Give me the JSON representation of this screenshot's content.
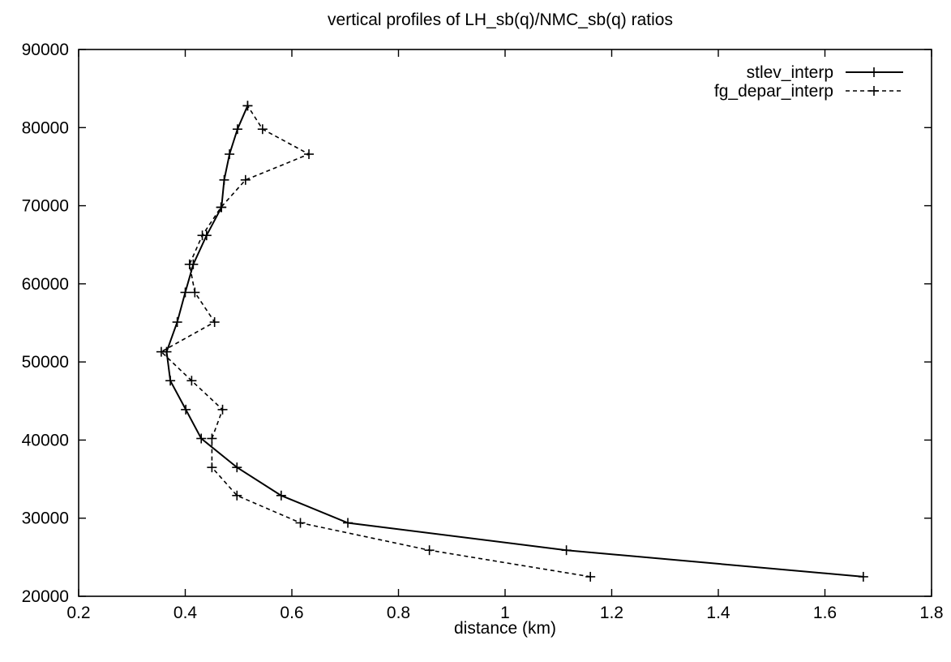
{
  "chart_data": {
    "type": "line",
    "title": "vertical profiles of LH_sb(q)/NMC_sb(q) ratios",
    "xlabel": "distance (km)",
    "ylabel": "",
    "xlim": [
      0.2,
      1.8
    ],
    "ylim": [
      20000,
      90000
    ],
    "x_ticks": [
      "0.2",
      "0.4",
      "0.6",
      "0.8",
      "1",
      "1.2",
      "1.4",
      "1.6",
      "1.8"
    ],
    "y_ticks": [
      "20000",
      "30000",
      "40000",
      "50000",
      "60000",
      "70000",
      "80000",
      "90000"
    ],
    "legend_position": "top-right",
    "grid": false,
    "series": [
      {
        "name": "stlev_interp",
        "style": "solid",
        "x": [
          1.672,
          1.115,
          0.705,
          0.58,
          0.497,
          0.43,
          0.401,
          0.372,
          0.365,
          0.385,
          0.4,
          0.415,
          0.44,
          0.468,
          0.473,
          0.483,
          0.498,
          0.517
        ],
        "y": [
          22500,
          25900,
          29400,
          32900,
          36500,
          40200,
          43900,
          47600,
          51300,
          55100,
          58900,
          62500,
          66200,
          69800,
          73300,
          76600,
          79800,
          82800
        ]
      },
      {
        "name": "fg_depar_interp",
        "style": "dashed",
        "x": [
          1.16,
          0.858,
          0.616,
          0.497,
          0.45,
          0.45,
          0.47,
          0.412,
          0.355,
          0.455,
          0.418,
          0.408,
          0.432,
          0.467,
          0.513,
          0.632,
          0.545,
          0.517
        ],
        "y": [
          22500,
          25900,
          29400,
          32900,
          36500,
          40200,
          43900,
          47600,
          51300,
          55100,
          58900,
          62500,
          66200,
          69800,
          73300,
          76600,
          79800,
          82800
        ]
      }
    ]
  }
}
